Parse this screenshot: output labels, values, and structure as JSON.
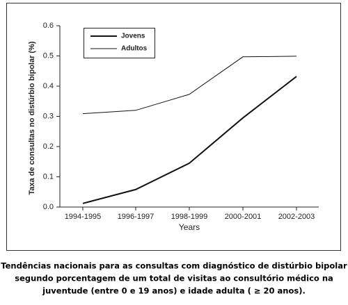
{
  "chart_data": {
    "type": "line",
    "y_label": "Taxa de consultas no distúrbio bipolar (%)",
    "x_label": "Years",
    "categories": [
      "1994-1995",
      "1996-1997",
      "1998-1999",
      "2000-2001",
      "2002-2003"
    ],
    "series": [
      {
        "name": "Jovens",
        "color": "#111111",
        "width": 2,
        "values": [
          0.012,
          0.058,
          0.145,
          0.295,
          0.432
        ]
      },
      {
        "name": "Adultos",
        "color": "#111111",
        "width": 1,
        "values": [
          0.309,
          0.32,
          0.373,
          0.497,
          0.499
        ]
      }
    ],
    "ylim": [
      0,
      0.6
    ],
    "yticks": [
      {
        "value": 0,
        "label": "0.0"
      },
      0.1,
      0.2,
      0.3,
      0.4,
      0.5,
      0.6
    ],
    "grid": false,
    "legend": "upper-left"
  },
  "caption": [
    "Tendências nacionais para as consultas com diagnóstico de distúrbio bipolar",
    "segundo porcentagem de um total de visitas ao consultório médico na",
    "juventude (entre 0 e 19 anos) e idade adulta ( ≥ 20 anos)."
  ]
}
